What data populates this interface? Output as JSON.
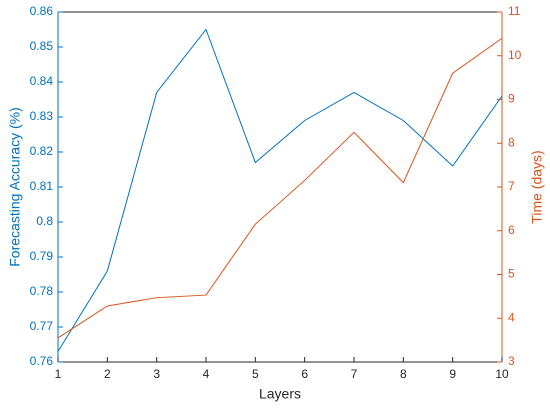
{
  "chart_data": {
    "type": "line",
    "x": [
      1,
      2,
      3,
      4,
      5,
      6,
      7,
      8,
      9,
      10
    ],
    "xlim": [
      1,
      10
    ],
    "xticks": [
      1,
      2,
      3,
      4,
      5,
      6,
      7,
      8,
      9,
      10
    ],
    "xlabel": "Layers",
    "ylabel": "Forecasting Accuracy (%)",
    "y2label": "Time (days)",
    "ylim": [
      0.76,
      0.86
    ],
    "yticks": [
      0.76,
      0.77,
      0.78,
      0.79,
      0.8,
      0.81,
      0.82,
      0.83,
      0.84,
      0.85,
      0.86
    ],
    "y2lim": [
      3,
      11
    ],
    "y2ticks": [
      3,
      4,
      5,
      6,
      7,
      8,
      9,
      10,
      11
    ],
    "grid": false,
    "series": [
      {
        "name": "Forecasting Accuracy",
        "color": "#0072bd",
        "values": [
          0.763,
          0.786,
          0.837,
          0.855,
          0.817,
          0.829,
          0.837,
          0.829,
          0.816,
          0.836
        ]
      },
      {
        "name": "Time",
        "color": "#d95319",
        "axis": "y2",
        "values": [
          3.55,
          4.28,
          4.47,
          4.53,
          6.15,
          7.15,
          8.25,
          7.1,
          9.6,
          10.4
        ]
      }
    ]
  }
}
